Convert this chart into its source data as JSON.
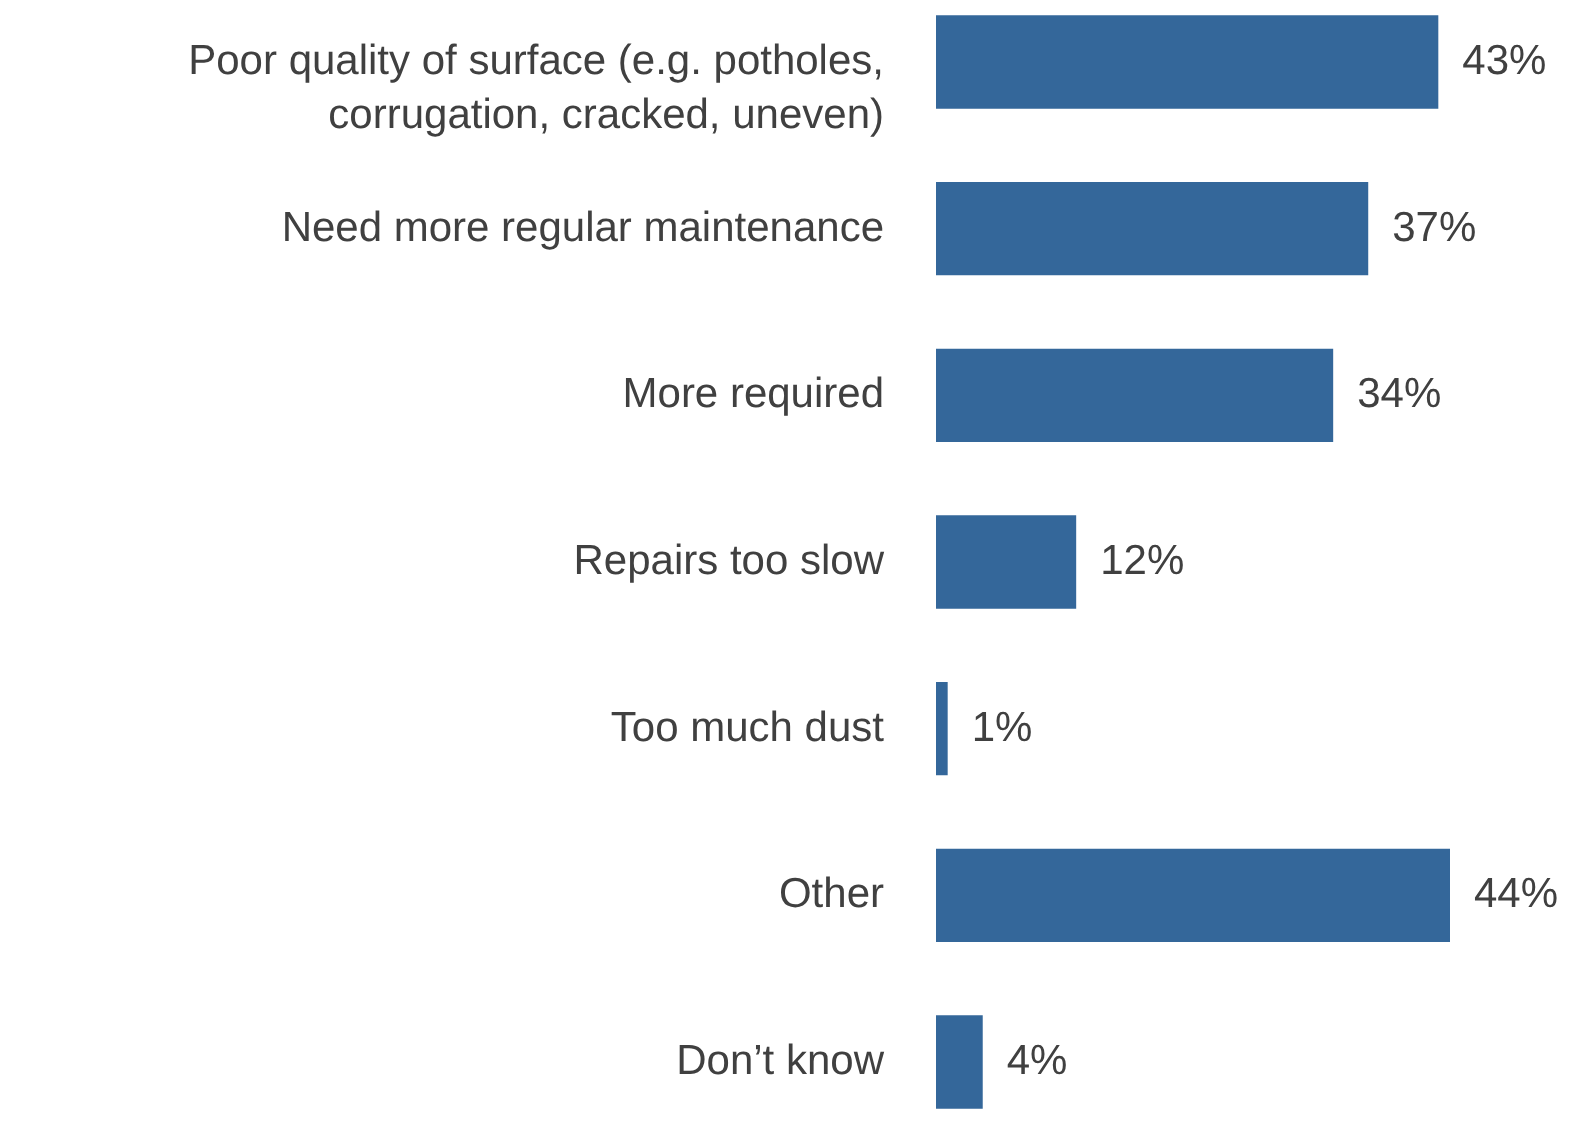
{
  "chart_data": {
    "type": "bar",
    "orientation": "horizontal",
    "categories": [
      "Poor quality of surface (e.g. potholes, corrugation, cracked, uneven)",
      "Need more regular maintenance",
      "More required",
      "Repairs too slow",
      "Too much dust",
      "Other",
      "Don’t know"
    ],
    "values": [
      43,
      37,
      34,
      12,
      1,
      44,
      4
    ],
    "value_labels": [
      "43%",
      "37%",
      "34%",
      "12%",
      "1%",
      "44%",
      "4%"
    ],
    "color": "#34679a"
  }
}
